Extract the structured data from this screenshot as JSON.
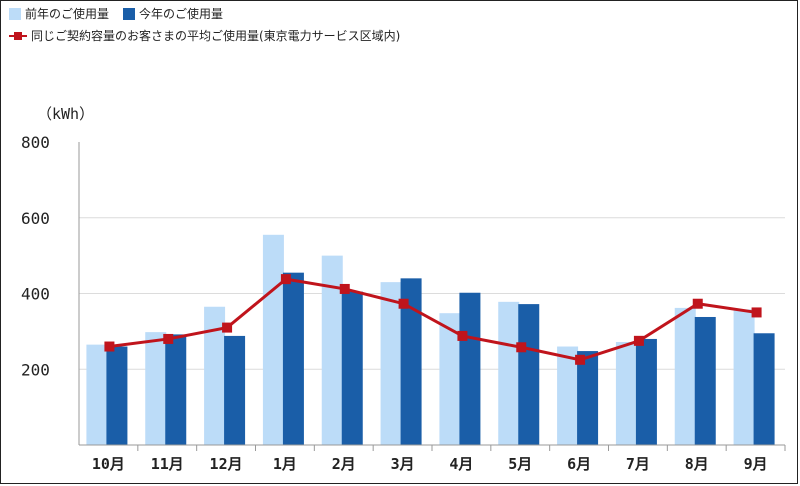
{
  "chart_data": {
    "type": "bar",
    "unit_label": "（kWh）",
    "categories": [
      "10月",
      "11月",
      "12月",
      "1月",
      "2月",
      "3月",
      "4月",
      "5月",
      "6月",
      "7月",
      "8月",
      "9月"
    ],
    "yticks": [
      200,
      400,
      600,
      800
    ],
    "ylim": [
      0,
      800
    ],
    "grid": true,
    "series": [
      {
        "name": "前年のご使用量",
        "kind": "bar",
        "color": "#bcdcf8",
        "values": [
          265,
          298,
          365,
          555,
          500,
          430,
          348,
          378,
          260,
          272,
          362,
          358
        ]
      },
      {
        "name": "今年のご使用量",
        "kind": "bar",
        "color": "#1a5ea8",
        "values": [
          260,
          292,
          288,
          455,
          405,
          440,
          402,
          372,
          248,
          280,
          338,
          295
        ]
      },
      {
        "name": "同じご契約容量のお客さまの平均ご使用量(東京電力サービス区域内)",
        "kind": "line",
        "color": "#c0141c",
        "values": [
          260,
          280,
          310,
          438,
          412,
          373,
          288,
          258,
          225,
          275,
          373,
          350
        ]
      }
    ]
  }
}
